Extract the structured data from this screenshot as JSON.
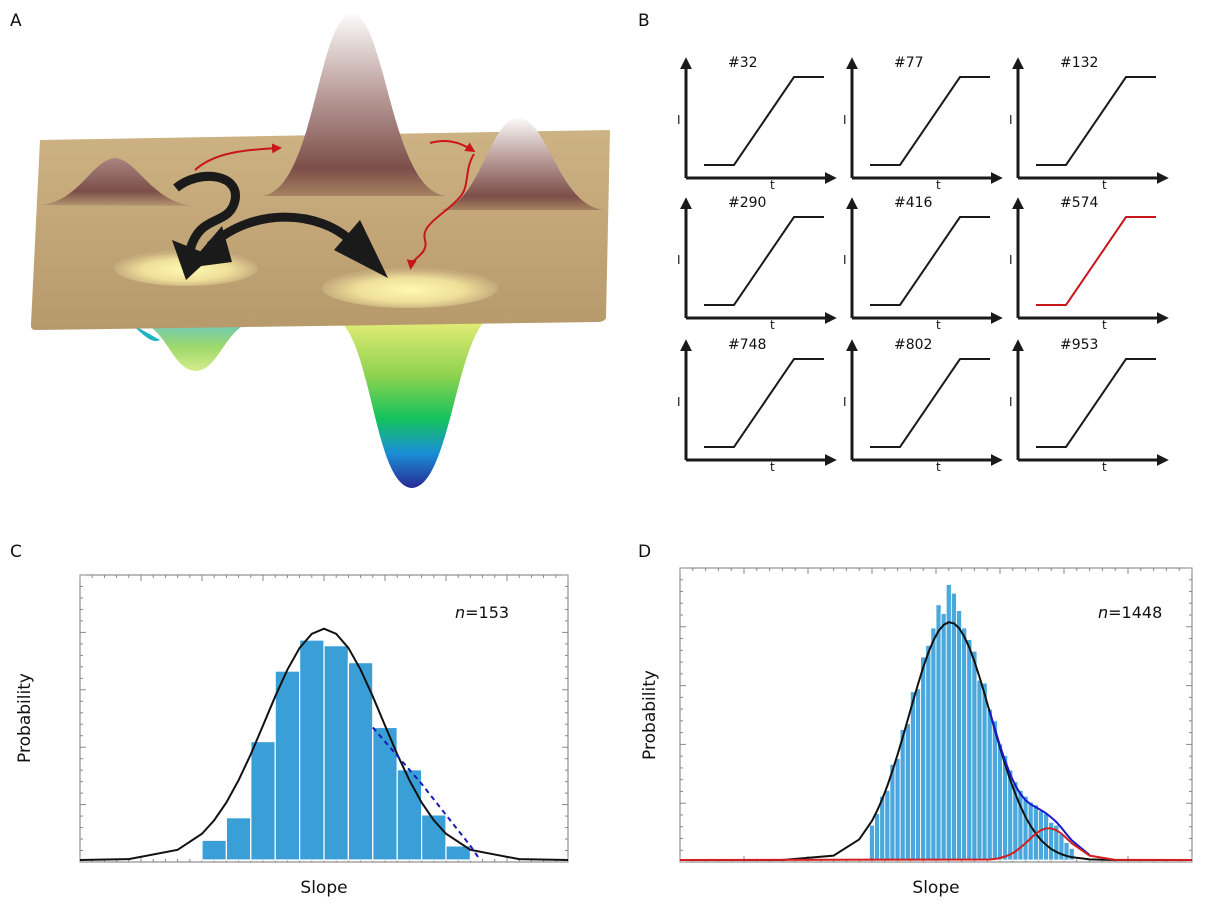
{
  "panel_labels": [
    "A",
    "B",
    "C",
    "D"
  ],
  "traces": {
    "x_label": "t",
    "y_label": "I",
    "items": [
      {
        "label": "#32",
        "color": "#1a1a1a"
      },
      {
        "label": "#77",
        "color": "#1a1a1a"
      },
      {
        "label": "#132",
        "color": "#1a1a1a"
      },
      {
        "label": "#290",
        "color": "#1a1a1a"
      },
      {
        "label": "#416",
        "color": "#1a1a1a"
      },
      {
        "label": "#574",
        "color": "#c8161d"
      },
      {
        "label": "#748",
        "color": "#1a1a1a"
      },
      {
        "label": "#802",
        "color": "#1a1a1a"
      },
      {
        "label": "#953",
        "color": "#1a1a1a"
      }
    ]
  },
  "chart_data": [
    {
      "type": "histogram",
      "xlabel": "Slope",
      "ylabel": "Probability",
      "annotation": {
        "variable": "n",
        "text": "=153"
      },
      "xlim": [
        0,
        100
      ],
      "ylim": [
        0,
        100
      ],
      "color": "#3a9fd6",
      "bins": [
        25,
        30,
        35,
        40,
        45,
        50,
        55,
        60,
        65,
        70,
        75,
        80
      ],
      "values": [
        7,
        15,
        42,
        67,
        78,
        76,
        70,
        47,
        32,
        16,
        5
      ],
      "curves": [
        {
          "color": "#111111",
          "style": "solid",
          "x": [
            0,
            10,
            20,
            25,
            27.5,
            30,
            32.5,
            35,
            37.5,
            40,
            42.5,
            45,
            47.5,
            50,
            52.5,
            55,
            57.5,
            60,
            62.5,
            65,
            67.5,
            70,
            72.5,
            75,
            80,
            90,
            100
          ],
          "values": [
            0,
            0.3,
            3.6,
            9.3,
            14.1,
            20.4,
            28.3,
            37.5,
            47.7,
            58.0,
            67.5,
            75.2,
            80.2,
            82,
            80.2,
            75.2,
            67.5,
            58.0,
            47.7,
            37.5,
            28.3,
            20.4,
            14.1,
            9.3,
            3.6,
            0.3,
            0
          ]
        },
        {
          "color": "#1a1ab4",
          "style": "dashed",
          "x": [
            60,
            65,
            70,
            75,
            80,
            82
          ],
          "values": [
            47,
            37,
            27,
            16,
            5,
            0
          ]
        }
      ]
    },
    {
      "type": "histogram",
      "xlabel": "Slope",
      "ylabel": "Probability",
      "annotation": {
        "variable": "n",
        "text": "=1448"
      },
      "xlim": [
        0,
        100
      ],
      "ylim": [
        0,
        100
      ],
      "color": "#4aa8dc",
      "bins": [
        37,
        38,
        39,
        40,
        41,
        42,
        43,
        44,
        45,
        46,
        47,
        48,
        49,
        50,
        51,
        52,
        53,
        54,
        55,
        56,
        57,
        58,
        59,
        60,
        61,
        62,
        63,
        64,
        65,
        66,
        67,
        68,
        69,
        70,
        71,
        72,
        73,
        74,
        75,
        76,
        77
      ],
      "values": [
        12,
        16,
        22,
        24,
        33,
        35,
        45,
        47,
        58,
        59,
        70,
        74,
        80,
        88,
        85,
        95,
        92,
        86,
        80,
        76,
        72,
        62,
        61,
        52,
        48,
        40,
        36,
        31,
        27,
        24,
        22,
        20,
        19,
        17,
        16,
        13,
        12,
        9,
        6,
        4
      ],
      "curves": [
        {
          "color": "#111111",
          "style": "solid",
          "x": [
            0,
            20,
            30,
            35,
            37.5,
            38.5,
            39.5,
            40.5,
            41.5,
            42.5,
            43.5,
            44.5,
            45.5,
            46.5,
            47.5,
            48.5,
            49.5,
            50.5,
            51.5,
            52.5,
            53.5,
            54.5,
            55.5,
            56.5,
            57.5,
            58.5,
            59.5,
            60.5,
            61.5,
            62.5,
            63.5,
            64.5,
            65.5,
            66.5,
            67.5,
            68.5,
            69.5,
            70.5,
            71.5,
            72.5,
            73.5,
            74.5,
            75.5,
            76.5,
            80,
            85,
            100
          ],
          "values": [
            0,
            0.02,
            1.5,
            7.1,
            13.5,
            17.0,
            21.0,
            25.6,
            30.8,
            36.4,
            42.3,
            48.5,
            54.7,
            60.7,
            66.4,
            71.5,
            75.7,
            79.0,
            81.1,
            82,
            81.6,
            80.0,
            77.1,
            73.3,
            68.5,
            63.1,
            57.2,
            51.0,
            44.8,
            38.7,
            33.0,
            27.6,
            22.8,
            18.5,
            14.8,
            11.7,
            9.1,
            6.9,
            5.2,
            3.8,
            2.8,
            2.0,
            1.4,
            1.0,
            0.2,
            0,
            0
          ]
        },
        {
          "color": "#1a1acc",
          "style": "solid",
          "x": [
            60.5,
            61.5,
            62.5,
            63.5,
            64.5,
            65.5,
            66.5,
            67.5,
            68.5,
            69.5,
            70.5,
            71.5,
            72.5,
            73.5,
            74.5,
            75.5,
            76.5,
            80
          ],
          "values": [
            51.2,
            45.2,
            39.4,
            34.2,
            29.5,
            25.7,
            22.8,
            20.6,
            19.2,
            18.2,
            17.2,
            16.1,
            14.7,
            13.1,
            11.1,
            8.9,
            6.8,
            1.7
          ]
        },
        {
          "color": "#d41f1f",
          "style": "solid",
          "x": [
            0,
            60.5,
            61.5,
            62.5,
            63.5,
            64.5,
            65.5,
            66.5,
            67.5,
            68.5,
            69.5,
            70.5,
            71.5,
            72.5,
            73.5,
            74.5,
            75.5,
            76.5,
            80,
            85,
            100
          ],
          "values": [
            0,
            0.18,
            0.35,
            0.7,
            1.2,
            1.9,
            2.9,
            4.3,
            5.8,
            7.5,
            9.1,
            10.3,
            10.9,
            10.9,
            10.3,
            9.1,
            7.5,
            5.8,
            1.5,
            0.05,
            0
          ]
        }
      ]
    }
  ]
}
